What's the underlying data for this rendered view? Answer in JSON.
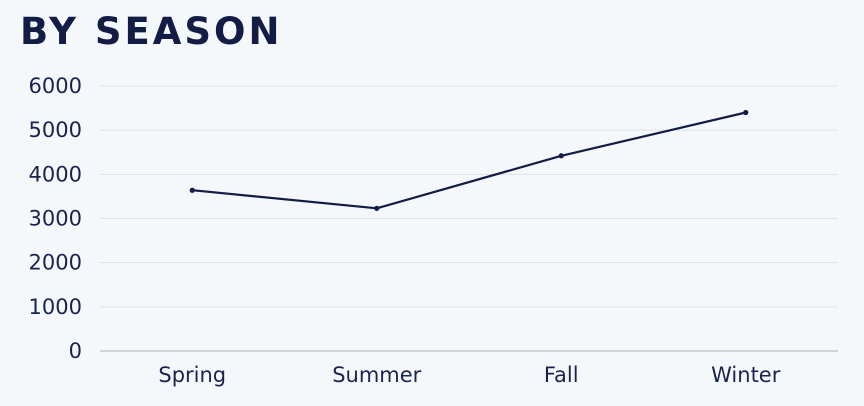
{
  "chart_data": {
    "type": "line",
    "title": "BY SEASON",
    "xlabel": "",
    "ylabel": "",
    "categories": [
      "Spring",
      "Summer",
      "Fall",
      "Winter"
    ],
    "values": [
      3640,
      3230,
      4420,
      5400
    ],
    "ylim": [
      0,
      6000
    ],
    "yticks": [
      0,
      1000,
      2000,
      3000,
      4000,
      5000,
      6000
    ],
    "grid": true,
    "legend": "none",
    "line_color": "#131c45"
  }
}
